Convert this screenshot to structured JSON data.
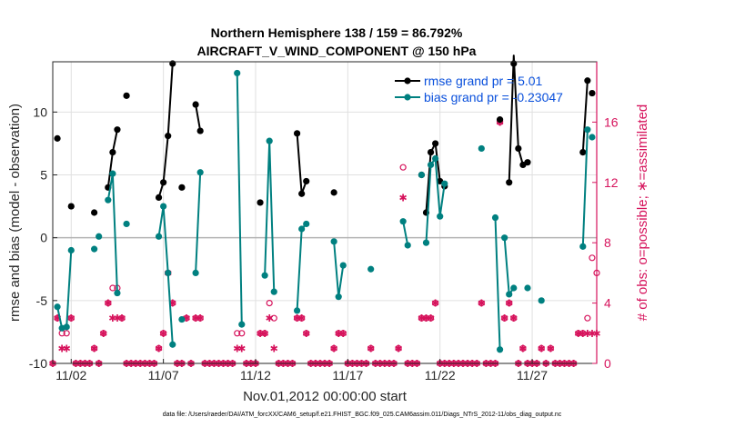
{
  "title_line1": "Northern Hemisphere 138 / 159 = 86.792%",
  "title_line2": "AIRCRAFT_V_WIND_COMPONENT @ 150 hPa",
  "footer": "data file: /Users/raeder/DAI/ATM_forcXX/CAM6_setup/f.e21.FHIST_BGC.f09_025.CAM6assim.011/Diags_NTrS_2012-11/obs_diag_output.nc",
  "colors": {
    "rmse": "#000000",
    "bias": "#008080",
    "count": "#d6135c",
    "legend_text": "#0a50dc",
    "zero_line": "#b3b3b3"
  },
  "chart_data": {
    "type": "line",
    "title": "Northern Hemisphere 138 / 159 = 86.792%",
    "subtitle": "AIRCRAFT_V_WIND_COMPONENT @ 150 hPa",
    "xlabel": "Nov.01,2012 00:00:00 start",
    "ylabel": "rmse and bias (model - observation)",
    "ylabel_right": "# of obs: o=possible; ∗=assimilated",
    "x_unit": "days since Nov.01,2012 00:00",
    "xlim": [
      0.5,
      30.0
    ],
    "ylim": [
      -10,
      14
    ],
    "ylim_right": [
      0,
      20
    ],
    "x_ticks": [
      1.5,
      6.5,
      11.5,
      16.5,
      21.5,
      26.5
    ],
    "x_tick_labels": [
      "11/02",
      "11/07",
      "11/12",
      "11/17",
      "11/22",
      "11/27"
    ],
    "y_ticks": [
      -10,
      -5,
      0,
      5,
      10
    ],
    "y_right_ticks": [
      0,
      4,
      8,
      12,
      16
    ],
    "grid": true,
    "legend_position": "top-right",
    "series": [
      {
        "name": "rmse grand pr = 5.01",
        "color": "#000000",
        "segments": [
          [
            [
              0.75,
              7.9
            ]
          ],
          [
            [
              1.5,
              2.5
            ]
          ],
          [
            [
              2.75,
              2.0
            ]
          ],
          [
            [
              3.5,
              4.0
            ],
            [
              3.75,
              6.8
            ],
            [
              4.0,
              8.6
            ]
          ],
          [
            [
              4.5,
              11.3
            ]
          ],
          [
            [
              6.25,
              3.2
            ],
            [
              6.5,
              4.4
            ],
            [
              6.75,
              8.1
            ],
            [
              7.0,
              13.9
            ]
          ],
          [
            [
              7.5,
              4.0
            ]
          ],
          [
            [
              8.25,
              10.6
            ],
            [
              8.5,
              8.5
            ]
          ],
          [
            [
              11.75,
              2.8
            ]
          ],
          [
            [
              13.75,
              8.3
            ],
            [
              14.0,
              3.5
            ],
            [
              14.25,
              4.5
            ]
          ],
          [
            [
              15.75,
              3.6
            ]
          ],
          [
            [
              20.5,
              5.0
            ]
          ],
          [
            [
              20.75,
              2.0
            ],
            [
              21.0,
              6.8
            ],
            [
              21.25,
              7.5
            ],
            [
              21.5,
              4.5
            ],
            [
              21.75,
              4.1
            ]
          ],
          [
            [
              24.75,
              9.4
            ]
          ],
          [
            [
              25.25,
              4.4
            ],
            [
              25.5,
              14.5
            ],
            [
              25.75,
              7.1
            ],
            [
              26.0,
              5.8
            ],
            [
              26.25,
              6.0
            ]
          ],
          [
            [
              29.25,
              6.8
            ],
            [
              29.5,
              12.5
            ]
          ],
          [
            [
              29.75,
              11.5
            ]
          ]
        ]
      },
      {
        "name": "bias grand pr = -0.23047",
        "color": "#008080",
        "segments": [
          [
            [
              0.75,
              -5.5
            ],
            [
              1.0,
              -7.2
            ],
            [
              1.25,
              -7.1
            ],
            [
              1.5,
              -1.0
            ]
          ],
          [
            [
              2.75,
              -0.9
            ]
          ],
          [
            [
              3.0,
              0.1
            ]
          ],
          [
            [
              3.5,
              3.0
            ],
            [
              3.75,
              5.1
            ],
            [
              4.0,
              -4.4
            ]
          ],
          [
            [
              4.5,
              1.1
            ]
          ],
          [
            [
              6.25,
              0.1
            ],
            [
              6.5,
              2.5
            ],
            [
              6.75,
              -2.8
            ],
            [
              7.0,
              -8.5
            ]
          ],
          [
            [
              7.5,
              -6.5
            ]
          ],
          [
            [
              8.25,
              -2.8
            ],
            [
              8.5,
              5.2
            ]
          ],
          [
            [
              10.5,
              13.1
            ],
            [
              10.75,
              -6.9
            ]
          ],
          [
            [
              12.0,
              -3.0
            ],
            [
              12.25,
              7.7
            ],
            [
              12.5,
              -4.3
            ]
          ],
          [
            [
              13.75,
              -5.8
            ],
            [
              14.0,
              0.7
            ],
            [
              14.25,
              1.1
            ]
          ],
          [
            [
              15.75,
              -0.3
            ],
            [
              16.0,
              -4.7
            ],
            [
              16.25,
              -2.2
            ]
          ],
          [
            [
              17.75,
              -2.5
            ]
          ],
          [
            [
              19.5,
              1.3
            ],
            [
              19.75,
              -0.6
            ]
          ],
          [
            [
              20.5,
              5.0
            ]
          ],
          [
            [
              20.75,
              -0.4
            ],
            [
              21.0,
              5.8
            ],
            [
              21.25,
              6.3
            ],
            [
              21.5,
              1.7
            ],
            [
              21.75,
              4.3
            ]
          ],
          [
            [
              23.75,
              7.1
            ]
          ],
          [
            [
              24.5,
              1.6
            ],
            [
              24.75,
              -8.9
            ]
          ],
          [
            [
              25.0,
              0.0
            ],
            [
              25.25,
              -4.5
            ],
            [
              25.5,
              -4.0
            ]
          ],
          [
            [
              26.25,
              -4.0
            ]
          ],
          [
            [
              27.0,
              -5.0
            ]
          ],
          [
            [
              29.25,
              -0.7
            ],
            [
              29.5,
              8.6
            ]
          ],
          [
            [
              29.75,
              8.0
            ]
          ]
        ]
      }
    ],
    "obs_possible": [
      [
        0.0,
        0
      ],
      [
        0.25,
        0
      ],
      [
        0.5,
        0
      ],
      [
        0.75,
        3
      ],
      [
        1.0,
        2
      ],
      [
        1.25,
        2
      ],
      [
        1.5,
        3
      ],
      [
        1.75,
        0
      ],
      [
        2.0,
        0
      ],
      [
        2.25,
        0
      ],
      [
        2.5,
        0
      ],
      [
        2.75,
        1
      ],
      [
        3.0,
        0
      ],
      [
        3.25,
        2
      ],
      [
        3.5,
        4
      ],
      [
        3.75,
        5
      ],
      [
        4.0,
        5
      ],
      [
        4.25,
        3
      ],
      [
        4.5,
        0
      ],
      [
        4.75,
        0
      ],
      [
        5.0,
        0
      ],
      [
        5.25,
        0
      ],
      [
        5.5,
        0
      ],
      [
        5.75,
        0
      ],
      [
        6.0,
        0
      ],
      [
        6.25,
        1
      ],
      [
        6.5,
        2
      ],
      [
        6.75,
        6
      ],
      [
        7.0,
        4
      ],
      [
        7.25,
        0
      ],
      [
        7.5,
        0
      ],
      [
        7.75,
        3
      ],
      [
        8.0,
        0
      ],
      [
        8.25,
        3
      ],
      [
        8.5,
        3
      ],
      [
        8.75,
        0
      ],
      [
        9.0,
        0
      ],
      [
        9.25,
        0
      ],
      [
        9.5,
        0
      ],
      [
        9.75,
        0
      ],
      [
        10.0,
        0
      ],
      [
        10.25,
        0
      ],
      [
        10.5,
        2
      ],
      [
        10.75,
        2
      ],
      [
        11.0,
        0
      ],
      [
        11.25,
        0
      ],
      [
        11.5,
        0
      ],
      [
        11.75,
        2
      ],
      [
        12.0,
        2
      ],
      [
        12.25,
        4
      ],
      [
        12.5,
        3
      ],
      [
        12.75,
        0
      ],
      [
        13.0,
        0
      ],
      [
        13.25,
        0
      ],
      [
        13.5,
        0
      ],
      [
        13.75,
        3
      ],
      [
        14.0,
        3
      ],
      [
        14.25,
        2
      ],
      [
        14.5,
        0
      ],
      [
        14.75,
        0
      ],
      [
        15.0,
        0
      ],
      [
        15.25,
        0
      ],
      [
        15.5,
        0
      ],
      [
        15.75,
        1
      ],
      [
        16.0,
        2
      ],
      [
        16.25,
        2
      ],
      [
        16.5,
        0
      ],
      [
        16.75,
        0
      ],
      [
        17.0,
        0
      ],
      [
        17.25,
        0
      ],
      [
        17.5,
        0
      ],
      [
        17.75,
        1
      ],
      [
        18.0,
        0
      ],
      [
        18.25,
        0
      ],
      [
        18.5,
        0
      ],
      [
        18.75,
        0
      ],
      [
        19.0,
        0
      ],
      [
        19.25,
        1
      ],
      [
        19.5,
        13
      ],
      [
        19.75,
        0
      ],
      [
        20.0,
        0
      ],
      [
        20.25,
        0
      ],
      [
        20.5,
        3
      ],
      [
        20.75,
        3
      ],
      [
        21.0,
        3
      ],
      [
        21.25,
        4
      ],
      [
        21.5,
        0
      ],
      [
        21.75,
        0
      ],
      [
        22.0,
        0
      ],
      [
        22.25,
        0
      ],
      [
        22.5,
        0
      ],
      [
        22.75,
        0
      ],
      [
        23.0,
        0
      ],
      [
        23.25,
        0
      ],
      [
        23.5,
        0
      ],
      [
        23.75,
        4
      ],
      [
        24.0,
        0
      ],
      [
        24.25,
        0
      ],
      [
        24.5,
        0
      ],
      [
        24.75,
        16
      ],
      [
        25.0,
        3
      ],
      [
        25.25,
        4
      ],
      [
        25.5,
        3
      ],
      [
        25.75,
        0
      ],
      [
        26.0,
        1
      ],
      [
        26.25,
        0
      ],
      [
        26.5,
        0
      ],
      [
        26.75,
        0
      ],
      [
        27.0,
        1
      ],
      [
        27.25,
        0
      ],
      [
        27.5,
        1
      ],
      [
        27.75,
        0
      ],
      [
        28.0,
        0
      ],
      [
        28.25,
        0
      ],
      [
        28.5,
        0
      ],
      [
        28.75,
        0
      ],
      [
        29.0,
        2
      ],
      [
        29.25,
        2
      ],
      [
        29.5,
        3
      ],
      [
        29.75,
        7
      ],
      [
        30.0,
        6
      ]
    ],
    "obs_assimilated": [
      [
        0.0,
        0
      ],
      [
        0.25,
        0
      ],
      [
        0.5,
        0
      ],
      [
        0.75,
        3
      ],
      [
        1.0,
        1
      ],
      [
        1.25,
        1
      ],
      [
        1.5,
        3
      ],
      [
        1.75,
        0
      ],
      [
        2.0,
        0
      ],
      [
        2.25,
        0
      ],
      [
        2.5,
        0
      ],
      [
        2.75,
        1
      ],
      [
        3.0,
        0
      ],
      [
        3.25,
        2
      ],
      [
        3.5,
        4
      ],
      [
        3.75,
        3
      ],
      [
        4.0,
        3
      ],
      [
        4.25,
        3
      ],
      [
        4.5,
        0
      ],
      [
        4.75,
        0
      ],
      [
        5.0,
        0
      ],
      [
        5.25,
        0
      ],
      [
        5.5,
        0
      ],
      [
        5.75,
        0
      ],
      [
        6.0,
        0
      ],
      [
        6.25,
        1
      ],
      [
        6.5,
        2
      ],
      [
        6.75,
        6
      ],
      [
        7.0,
        4
      ],
      [
        7.25,
        0
      ],
      [
        7.5,
        0
      ],
      [
        7.75,
        3
      ],
      [
        8.0,
        0
      ],
      [
        8.25,
        3
      ],
      [
        8.5,
        3
      ],
      [
        8.75,
        0
      ],
      [
        9.0,
        0
      ],
      [
        9.25,
        0
      ],
      [
        9.5,
        0
      ],
      [
        9.75,
        0
      ],
      [
        10.0,
        0
      ],
      [
        10.25,
        0
      ],
      [
        10.5,
        1
      ],
      [
        10.75,
        1
      ],
      [
        11.0,
        0
      ],
      [
        11.25,
        0
      ],
      [
        11.5,
        0
      ],
      [
        11.75,
        2
      ],
      [
        12.0,
        2
      ],
      [
        12.25,
        3
      ],
      [
        12.5,
        1
      ],
      [
        12.75,
        0
      ],
      [
        13.0,
        0
      ],
      [
        13.25,
        0
      ],
      [
        13.5,
        0
      ],
      [
        13.75,
        3
      ],
      [
        14.0,
        3
      ],
      [
        14.25,
        2
      ],
      [
        14.5,
        0
      ],
      [
        14.75,
        0
      ],
      [
        15.0,
        0
      ],
      [
        15.25,
        0
      ],
      [
        15.5,
        0
      ],
      [
        15.75,
        1
      ],
      [
        16.0,
        2
      ],
      [
        16.25,
        2
      ],
      [
        16.5,
        0
      ],
      [
        16.75,
        0
      ],
      [
        17.0,
        0
      ],
      [
        17.25,
        0
      ],
      [
        17.5,
        0
      ],
      [
        17.75,
        1
      ],
      [
        18.0,
        0
      ],
      [
        18.25,
        0
      ],
      [
        18.5,
        0
      ],
      [
        18.75,
        0
      ],
      [
        19.0,
        0
      ],
      [
        19.25,
        1
      ],
      [
        19.5,
        11
      ],
      [
        19.75,
        0
      ],
      [
        20.0,
        0
      ],
      [
        20.25,
        0
      ],
      [
        20.5,
        3
      ],
      [
        20.75,
        3
      ],
      [
        21.0,
        3
      ],
      [
        21.25,
        4
      ],
      [
        21.5,
        0
      ],
      [
        21.75,
        0
      ],
      [
        22.0,
        0
      ],
      [
        22.25,
        0
      ],
      [
        22.5,
        0
      ],
      [
        22.75,
        0
      ],
      [
        23.0,
        0
      ],
      [
        23.25,
        0
      ],
      [
        23.5,
        0
      ],
      [
        23.75,
        4
      ],
      [
        24.0,
        0
      ],
      [
        24.25,
        0
      ],
      [
        24.5,
        0
      ],
      [
        24.75,
        16
      ],
      [
        25.0,
        3
      ],
      [
        25.25,
        4
      ],
      [
        25.5,
        3
      ],
      [
        25.75,
        0
      ],
      [
        26.0,
        1
      ],
      [
        26.25,
        0
      ],
      [
        26.5,
        0
      ],
      [
        26.75,
        0
      ],
      [
        27.0,
        1
      ],
      [
        27.25,
        0
      ],
      [
        27.5,
        1
      ],
      [
        27.75,
        0
      ],
      [
        28.0,
        0
      ],
      [
        28.25,
        0
      ],
      [
        28.5,
        0
      ],
      [
        28.75,
        0
      ],
      [
        29.0,
        2
      ],
      [
        29.25,
        2
      ],
      [
        29.5,
        2
      ],
      [
        29.75,
        2
      ],
      [
        30.0,
        2
      ]
    ]
  }
}
